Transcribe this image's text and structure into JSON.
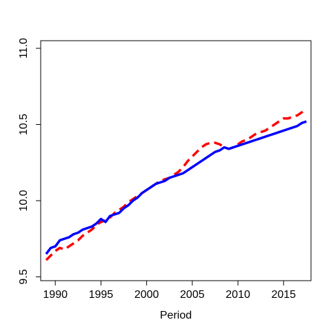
{
  "chart_data": {
    "type": "line",
    "title": "",
    "xlabel": "Period",
    "ylabel": "",
    "xlim": [
      1988.4,
      2018.0
    ],
    "ylim": [
      9.475,
      11.05
    ],
    "xticks": [
      1990,
      1995,
      2000,
      2005,
      2010,
      2015
    ],
    "xtick_labels": [
      "1990",
      "1995",
      "2000",
      "2005",
      "2010",
      "2015"
    ],
    "yticks": [
      9.5,
      10.0,
      10.5,
      11.0
    ],
    "ytick_labels": [
      "9.5",
      "10.0",
      "10.5",
      "11.0"
    ],
    "grid": false,
    "legend": "none",
    "series": [
      {
        "color": "#0000ff",
        "style": "solid",
        "x": [
          1989.0,
          1989.5,
          1990.0,
          1990.5,
          1991.0,
          1991.5,
          1992.0,
          1992.5,
          1993.0,
          1993.5,
          1994.0,
          1994.5,
          1995.0,
          1995.5,
          1996.0,
          1996.5,
          1997.0,
          1997.5,
          1998.0,
          1998.5,
          1999.0,
          1999.5,
          2000.0,
          2000.5,
          2001.0,
          2001.5,
          2002.0,
          2002.5,
          2003.0,
          2003.5,
          2004.0,
          2004.5,
          2005.0,
          2005.5,
          2006.0,
          2006.5,
          2007.0,
          2007.5,
          2008.0,
          2008.5,
          2009.0,
          2009.5,
          2010.0,
          2010.5,
          2011.0,
          2011.5,
          2012.0,
          2012.5,
          2013.0,
          2013.5,
          2014.0,
          2014.5,
          2015.0,
          2015.5,
          2016.0,
          2016.5,
          2017.0,
          2017.5
        ],
        "values": [
          9.65,
          9.69,
          9.7,
          9.74,
          9.75,
          9.76,
          9.78,
          9.79,
          9.81,
          9.82,
          9.83,
          9.85,
          9.88,
          9.86,
          9.9,
          9.91,
          9.92,
          9.95,
          9.97,
          10.0,
          10.02,
          10.05,
          10.07,
          10.09,
          10.11,
          10.12,
          10.13,
          10.15,
          10.16,
          10.17,
          10.18,
          10.2,
          10.22,
          10.24,
          10.26,
          10.28,
          10.3,
          10.32,
          10.33,
          10.35,
          10.34,
          10.35,
          10.36,
          10.37,
          10.38,
          10.39,
          10.4,
          10.41,
          10.42,
          10.43,
          10.44,
          10.45,
          10.46,
          10.47,
          10.48,
          10.49,
          10.51,
          10.52
        ]
      },
      {
        "color": "#ff0000",
        "style": "dashed",
        "x": [
          1989.0,
          1989.5,
          1990.0,
          1990.5,
          1991.0,
          1991.5,
          1992.0,
          1992.5,
          1993.0,
          1993.5,
          1994.0,
          1994.5,
          1995.0,
          1995.5,
          1996.0,
          1996.5,
          1997.0,
          1997.5,
          1998.0,
          1998.5,
          1999.0,
          1999.5,
          2000.0,
          2000.5,
          2001.0,
          2001.5,
          2002.0,
          2002.5,
          2003.0,
          2003.5,
          2004.0,
          2004.5,
          2005.0,
          2005.5,
          2006.0,
          2006.5,
          2007.0,
          2007.5,
          2008.0,
          2008.5,
          2009.0,
          2009.5,
          2010.0,
          2010.5,
          2011.0,
          2011.5,
          2012.0,
          2012.5,
          2013.0,
          2013.5,
          2014.0,
          2014.5,
          2015.0,
          2015.5,
          2016.0,
          2016.5,
          2017.0,
          2017.5
        ],
        "values": [
          9.61,
          9.64,
          9.67,
          9.69,
          9.68,
          9.7,
          9.72,
          9.74,
          9.77,
          9.79,
          9.81,
          9.84,
          9.86,
          9.87,
          9.89,
          9.92,
          9.94,
          9.96,
          9.99,
          10.01,
          10.03,
          10.05,
          10.07,
          10.09,
          10.11,
          10.13,
          10.14,
          10.15,
          10.17,
          10.19,
          10.22,
          10.26,
          10.29,
          10.32,
          10.35,
          10.37,
          10.38,
          10.38,
          10.37,
          10.35,
          10.34,
          10.35,
          10.37,
          10.39,
          10.4,
          10.42,
          10.44,
          10.45,
          10.46,
          10.48,
          10.5,
          10.52,
          10.54,
          10.54,
          10.55,
          10.56,
          10.58,
          10.6
        ]
      }
    ]
  }
}
